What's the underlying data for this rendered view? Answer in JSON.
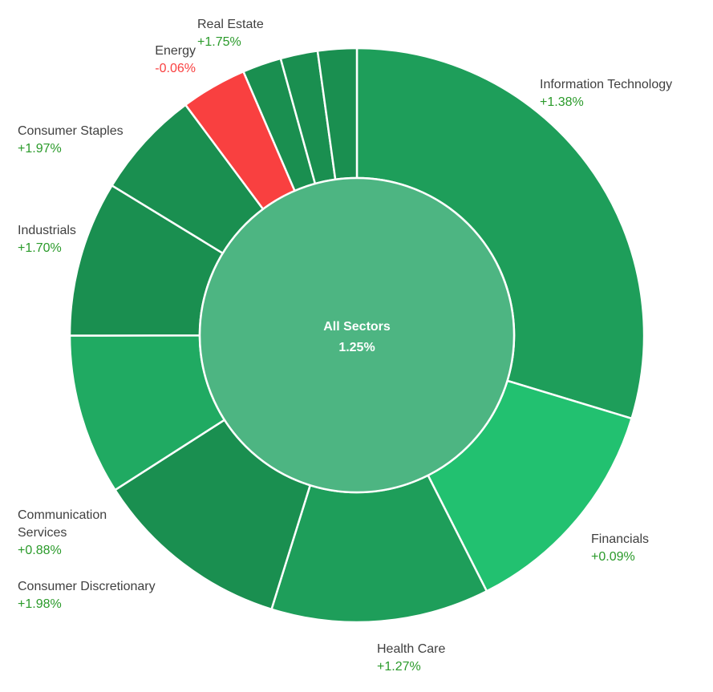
{
  "chart_data": {
    "type": "pie",
    "center": {
      "title": "All Sectors",
      "value": "1.25%",
      "color": "#4db582"
    },
    "series": [
      {
        "name": "Information Technology",
        "change": "+1.38%",
        "weight": 31.2,
        "color": "#1e9e5a"
      },
      {
        "name": "Financials",
        "change": "+0.09%",
        "weight": 13.5,
        "color": "#22c170"
      },
      {
        "name": "Health Care",
        "change": "+1.27%",
        "weight": 12.9,
        "color": "#1e9e5a"
      },
      {
        "name": "Consumer Discretionary",
        "change": "+1.98%",
        "weight": 11.7,
        "color": "#1a8f50"
      },
      {
        "name": "Communication Services",
        "change": "+0.88%",
        "weight": 9.5,
        "color": "#20aa62"
      },
      {
        "name": "Industrials",
        "change": "+1.70%",
        "weight": 9.2,
        "color": "#1a8f50"
      },
      {
        "name": "Consumer Staples",
        "change": "+1.97%",
        "weight": 6.4,
        "color": "#1a8f50"
      },
      {
        "name": "Energy",
        "change": "-0.06%",
        "weight": 3.9,
        "color": "#f94040"
      },
      {
        "name": "Real Estate",
        "change": "+1.75%",
        "weight": 2.3,
        "color": "#1a8f50"
      },
      {
        "name": "",
        "change": "",
        "weight": 2.2,
        "color": "#1a8f50"
      },
      {
        "name": "",
        "change": "",
        "weight": 2.3,
        "color": "#1a8f50"
      }
    ],
    "colors": {
      "positive_text": "#2a9a2a",
      "negative_text": "#f94040",
      "separator": "#ffffff"
    }
  }
}
